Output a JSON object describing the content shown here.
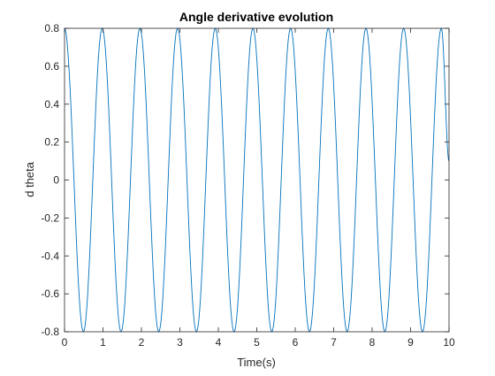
{
  "chart_data": {
    "type": "line",
    "title": "Angle derivative evolution",
    "xlabel": "Time(s)",
    "ylabel": "d theta",
    "xlim": [
      0,
      10
    ],
    "ylim": [
      -0.8,
      0.8
    ],
    "xticks": [
      0,
      1,
      2,
      3,
      4,
      5,
      6,
      7,
      8,
      9,
      10
    ],
    "xtick_labels": [
      "0",
      "1",
      "2",
      "3",
      "4",
      "5",
      "6",
      "7",
      "8",
      "9",
      "10"
    ],
    "yticks": [
      0.8,
      0.6,
      0.4,
      0.2,
      0,
      -0.2,
      -0.4,
      -0.6,
      -0.8
    ],
    "ytick_labels": [
      "0.8",
      "0.6",
      "0.4",
      "0.2",
      "0",
      "-0.2",
      "-0.4",
      "-0.6",
      "-0.8"
    ],
    "grid": false,
    "box": true,
    "series": [
      {
        "color": "#0072BD",
        "x": [
          0,
          0.49,
          0.98,
          1.47,
          1.96,
          2.45,
          2.94,
          3.43,
          3.92,
          4.41,
          4.9,
          5.39,
          5.88,
          6.37,
          6.86,
          7.35,
          7.84,
          8.33,
          8.82,
          9.31,
          9.8,
          10
        ],
        "values": [
          0.8,
          -0.8,
          0.8,
          -0.8,
          0.8,
          -0.8,
          0.8,
          -0.8,
          0.8,
          -0.8,
          0.8,
          -0.8,
          0.8,
          -0.8,
          0.8,
          -0.8,
          0.8,
          -0.8,
          0.8,
          -0.8,
          0.8,
          0.1
        ]
      }
    ]
  }
}
